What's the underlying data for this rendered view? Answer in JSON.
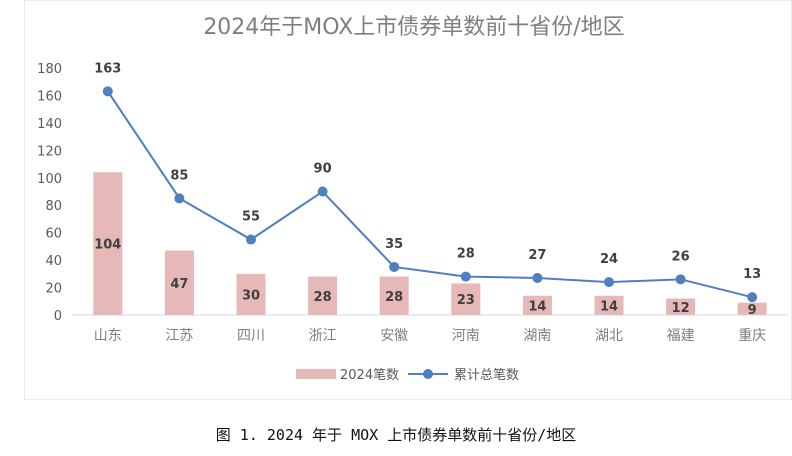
{
  "caption": "图 1. 2024 年于 MOX 上市债券单数前十省份/地区",
  "chart_data": {
    "type": "bar",
    "title": "2024年于MOX上市债券单数前十省份/地区",
    "categories": [
      "山东",
      "江苏",
      "四川",
      "浙江",
      "安徽",
      "河南",
      "湖南",
      "湖北",
      "福建",
      "重庆"
    ],
    "series": [
      {
        "name": "2024笔数",
        "type": "bar",
        "color": "#e6b8b7",
        "values": [
          104,
          47,
          30,
          28,
          28,
          23,
          14,
          14,
          12,
          9
        ]
      },
      {
        "name": "累计总笔数",
        "type": "line",
        "color": "#4f7fc0",
        "values": [
          163,
          85,
          55,
          90,
          35,
          28,
          27,
          24,
          26,
          13
        ]
      }
    ],
    "ylim": [
      0,
      180
    ],
    "yticks": [
      0,
      20,
      40,
      60,
      80,
      100,
      120,
      140,
      160,
      180
    ],
    "grid": false,
    "legend": "bottom"
  }
}
